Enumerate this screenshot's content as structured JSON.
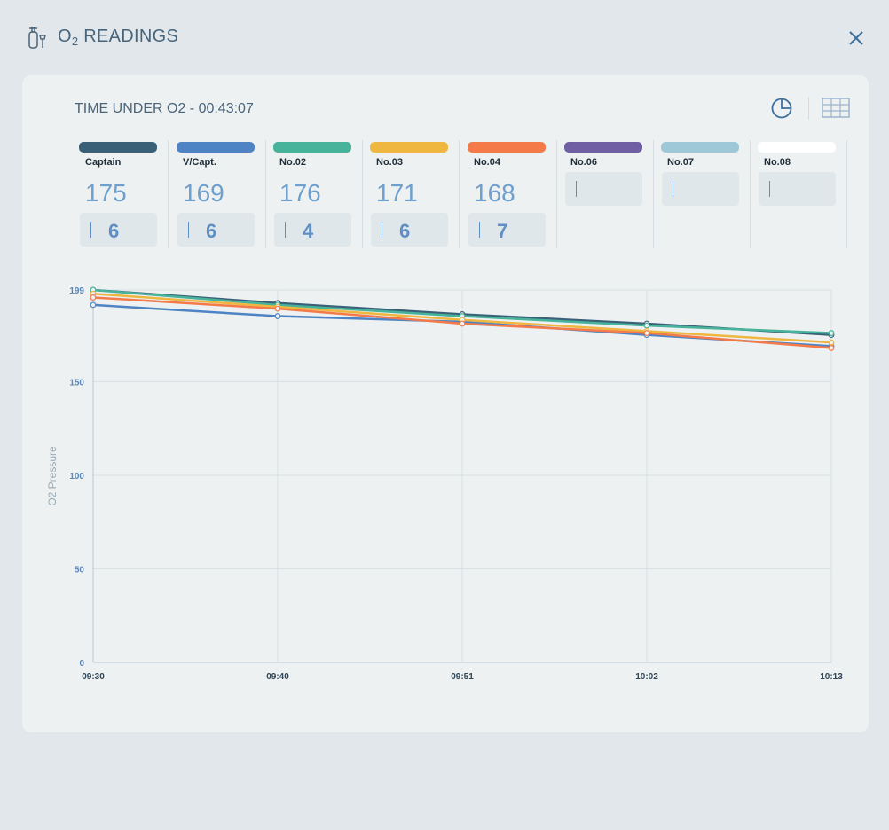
{
  "header": {
    "title_prefix": "O",
    "title_sub": "2",
    "title_suffix": " READINGS"
  },
  "panel": {
    "time_under": "TIME UNDER O2 - 00:43:07"
  },
  "crew": [
    {
      "name": "Captain",
      "color": "#3a6078",
      "pressure": "175",
      "rate": "6"
    },
    {
      "name": "V/Capt.",
      "color": "#4e84c4",
      "pressure": "169",
      "rate": "6"
    },
    {
      "name": "No.02",
      "color": "#46b39a",
      "pressure": "176",
      "rate": "4"
    },
    {
      "name": "No.03",
      "color": "#efb640",
      "pressure": "171",
      "rate": "6"
    },
    {
      "name": "No.04",
      "color": "#f47a4a",
      "pressure": "168",
      "rate": "7"
    },
    {
      "name": "No.06",
      "color": "#7060a3",
      "pressure": "",
      "rate": ""
    },
    {
      "name": "No.07",
      "color": "#9ec8d8",
      "pressure": "",
      "rate": ""
    },
    {
      "name": "No.08",
      "color": "#ffffff",
      "pressure": "",
      "rate": ""
    }
  ],
  "chart_data": {
    "type": "line",
    "title": "",
    "xlabel": "",
    "ylabel": "O2 Pressure",
    "x": [
      "09:30",
      "09:40",
      "09:51",
      "10:02",
      "10:13"
    ],
    "ylim": [
      0,
      199
    ],
    "yticks": [
      0,
      50,
      100,
      150,
      199
    ],
    "grid": true,
    "series": [
      {
        "name": "Captain",
        "color": "#3a6078",
        "values": [
          199,
          192,
          186,
          181,
          175
        ]
      },
      {
        "name": "V/Capt.",
        "color": "#4e84c4",
        "values": [
          191,
          185,
          182,
          175,
          169
        ]
      },
      {
        "name": "No.02",
        "color": "#46b39a",
        "values": [
          199,
          191,
          185,
          180,
          176
        ]
      },
      {
        "name": "No.03",
        "color": "#efb640",
        "values": [
          197,
          190,
          183,
          177,
          171
        ]
      },
      {
        "name": "No.04",
        "color": "#f47a4a",
        "values": [
          195,
          189,
          181,
          176,
          168
        ]
      }
    ]
  }
}
